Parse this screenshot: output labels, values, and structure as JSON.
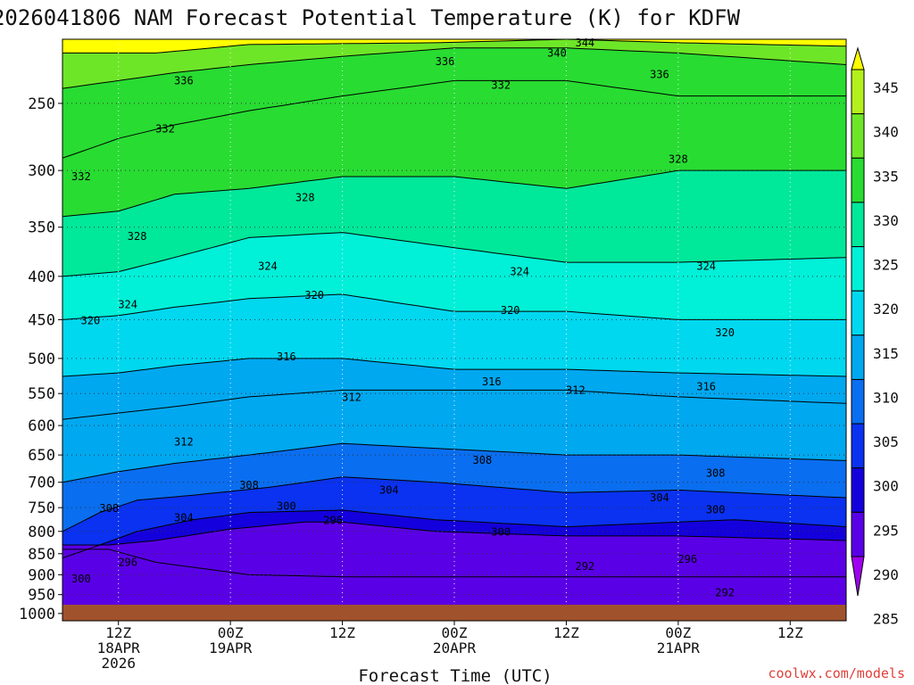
{
  "chart_data": {
    "type": "heatmap",
    "title": "2026041806 NAM Forecast Potential Temperature (K) for KDFW",
    "xlabel": "Forecast Time (UTC)",
    "ylabel": "",
    "credit": "coolwx.com/models",
    "x_range_hours": [
      0,
      84
    ],
    "x_ticks": [
      {
        "hour": 6,
        "line1": "12Z",
        "line2": "18APR",
        "line3": "2026"
      },
      {
        "hour": 18,
        "line1": "00Z",
        "line2": "19APR",
        "line3": ""
      },
      {
        "hour": 30,
        "line1": "12Z",
        "line2": "",
        "line3": ""
      },
      {
        "hour": 42,
        "line1": "00Z",
        "line2": "20APR",
        "line3": ""
      },
      {
        "hour": 54,
        "line1": "12Z",
        "line2": "",
        "line3": ""
      },
      {
        "hour": 66,
        "line1": "00Z",
        "line2": "21APR",
        "line3": ""
      },
      {
        "hour": 78,
        "line1": "12Z",
        "line2": "",
        "line3": ""
      }
    ],
    "y_range_hpa": [
      1020,
      210
    ],
    "y_ticks_hpa": [
      250,
      300,
      350,
      400,
      450,
      500,
      550,
      600,
      650,
      700,
      750,
      800,
      850,
      900,
      950,
      1000
    ],
    "grid": "dotted",
    "contour_interval_K": 4,
    "colorbar": {
      "placement": "right",
      "ticks": [
        345,
        340,
        335,
        330,
        325,
        320,
        315,
        310,
        305,
        300,
        295,
        290,
        285
      ],
      "bands": [
        {
          "min": 345,
          "max": 350,
          "color": "#ffff00"
        },
        {
          "min": 340,
          "max": 345,
          "color": "#b4f01e"
        },
        {
          "min": 335,
          "max": 340,
          "color": "#6ee628"
        },
        {
          "min": 330,
          "max": 335,
          "color": "#28dc32"
        },
        {
          "min": 325,
          "max": 330,
          "color": "#00e89a"
        },
        {
          "min": 320,
          "max": 325,
          "color": "#00f0d8"
        },
        {
          "min": 315,
          "max": 320,
          "color": "#00d8f0"
        },
        {
          "min": 310,
          "max": 315,
          "color": "#00a8f0"
        },
        {
          "min": 305,
          "max": 310,
          "color": "#0a6ef0"
        },
        {
          "min": 300,
          "max": 305,
          "color": "#0a32f0"
        },
        {
          "min": 295,
          "max": 300,
          "color": "#1400dc"
        },
        {
          "min": 290,
          "max": 295,
          "color": "#5a00e6"
        },
        {
          "min": 285,
          "max": 290,
          "color": "#a000f0"
        }
      ]
    },
    "contours": [
      {
        "theta": 292,
        "points": [
          [
            5,
            840
          ],
          [
            10,
            870
          ],
          [
            20,
            900
          ],
          [
            30,
            905
          ],
          [
            42,
            905
          ],
          [
            54,
            905
          ],
          [
            66,
            905
          ],
          [
            84,
            905
          ]
        ]
      },
      {
        "theta": 296,
        "points": [
          [
            5,
            830
          ],
          [
            10,
            820
          ],
          [
            18,
            795
          ],
          [
            26,
            780
          ],
          [
            30,
            780
          ],
          [
            40,
            800
          ],
          [
            54,
            810
          ],
          [
            66,
            810
          ],
          [
            84,
            820
          ]
        ]
      },
      {
        "theta": 300,
        "points": [
          [
            0,
            860
          ],
          [
            4,
            830
          ],
          [
            8,
            800
          ],
          [
            14,
            775
          ],
          [
            20,
            760
          ],
          [
            30,
            755
          ],
          [
            40,
            775
          ],
          [
            54,
            790
          ],
          [
            66,
            780
          ],
          [
            72,
            775
          ],
          [
            84,
            790
          ]
        ]
      },
      {
        "theta": 304,
        "points": [
          [
            0,
            800
          ],
          [
            4,
            760
          ],
          [
            8,
            735
          ],
          [
            14,
            725
          ],
          [
            22,
            710
          ],
          [
            30,
            690
          ],
          [
            40,
            700
          ],
          [
            54,
            720
          ],
          [
            66,
            715
          ],
          [
            84,
            730
          ]
        ]
      },
      {
        "theta": 308,
        "points": [
          [
            0,
            700
          ],
          [
            6,
            680
          ],
          [
            12,
            665
          ],
          [
            20,
            650
          ],
          [
            30,
            630
          ],
          [
            42,
            640
          ],
          [
            54,
            650
          ],
          [
            66,
            650
          ],
          [
            84,
            660
          ]
        ]
      },
      {
        "theta": 312,
        "points": [
          [
            0,
            590
          ],
          [
            6,
            580
          ],
          [
            12,
            570
          ],
          [
            20,
            555
          ],
          [
            30,
            545
          ],
          [
            42,
            545
          ],
          [
            54,
            545
          ],
          [
            66,
            555
          ],
          [
            84,
            565
          ]
        ]
      },
      {
        "theta": 316,
        "points": [
          [
            0,
            525
          ],
          [
            6,
            520
          ],
          [
            12,
            510
          ],
          [
            20,
            500
          ],
          [
            30,
            500
          ],
          [
            42,
            515
          ],
          [
            54,
            515
          ],
          [
            66,
            520
          ],
          [
            84,
            525
          ]
        ]
      },
      {
        "theta": 320,
        "points": [
          [
            0,
            450
          ],
          [
            6,
            445
          ],
          [
            12,
            435
          ],
          [
            20,
            425
          ],
          [
            30,
            420
          ],
          [
            42,
            440
          ],
          [
            54,
            440
          ],
          [
            66,
            450
          ],
          [
            84,
            450
          ]
        ]
      },
      {
        "theta": 324,
        "points": [
          [
            0,
            400
          ],
          [
            6,
            395
          ],
          [
            12,
            380
          ],
          [
            20,
            360
          ],
          [
            30,
            355
          ],
          [
            42,
            370
          ],
          [
            54,
            385
          ],
          [
            66,
            385
          ],
          [
            84,
            380
          ]
        ]
      },
      {
        "theta": 328,
        "points": [
          [
            0,
            340
          ],
          [
            6,
            335
          ],
          [
            12,
            320
          ],
          [
            20,
            315
          ],
          [
            30,
            305
          ],
          [
            42,
            305
          ],
          [
            54,
            315
          ],
          [
            66,
            300
          ],
          [
            84,
            300
          ]
        ]
      },
      {
        "theta": 332,
        "points": [
          [
            0,
            290
          ],
          [
            6,
            275
          ],
          [
            12,
            265
          ],
          [
            20,
            255
          ],
          [
            30,
            245
          ],
          [
            42,
            235
          ],
          [
            54,
            235
          ],
          [
            66,
            245
          ],
          [
            84,
            245
          ]
        ]
      },
      {
        "theta": 336,
        "points": [
          [
            0,
            240
          ],
          [
            6,
            235
          ],
          [
            12,
            230
          ],
          [
            20,
            225
          ],
          [
            30,
            220
          ],
          [
            42,
            215
          ],
          [
            54,
            215
          ],
          [
            66,
            218
          ],
          [
            84,
            225
          ]
        ]
      },
      {
        "theta": 340,
        "points": [
          [
            10,
            218
          ],
          [
            20,
            213
          ],
          [
            40,
            212
          ],
          [
            54,
            210
          ],
          [
            66,
            212
          ],
          [
            84,
            214
          ]
        ]
      }
    ],
    "contour_labels": [
      {
        "text": "344",
        "hour": 56,
        "hpa": 212
      },
      {
        "text": "340",
        "hour": 53,
        "hpa": 218
      },
      {
        "text": "336",
        "hour": 41,
        "hpa": 223
      },
      {
        "text": "336",
        "hour": 13,
        "hpa": 235
      },
      {
        "text": "336",
        "hour": 64,
        "hpa": 231
      },
      {
        "text": "332",
        "hour": 47,
        "hpa": 238
      },
      {
        "text": "332",
        "hour": 11,
        "hpa": 268
      },
      {
        "text": "332",
        "hour": 2,
        "hpa": 305
      },
      {
        "text": "328",
        "hour": 26,
        "hpa": 323
      },
      {
        "text": "328",
        "hour": 66,
        "hpa": 291
      },
      {
        "text": "328",
        "hour": 8,
        "hpa": 359
      },
      {
        "text": "324",
        "hour": 22,
        "hpa": 389
      },
      {
        "text": "324",
        "hour": 49,
        "hpa": 395
      },
      {
        "text": "324",
        "hour": 69,
        "hpa": 389
      },
      {
        "text": "324",
        "hour": 7,
        "hpa": 432
      },
      {
        "text": "320",
        "hour": 27,
        "hpa": 421
      },
      {
        "text": "320",
        "hour": 48,
        "hpa": 439
      },
      {
        "text": "320",
        "hour": 3,
        "hpa": 451
      },
      {
        "text": "320",
        "hour": 71,
        "hpa": 466
      },
      {
        "text": "316",
        "hour": 24,
        "hpa": 498
      },
      {
        "text": "316",
        "hour": 46,
        "hpa": 533
      },
      {
        "text": "316",
        "hour": 69,
        "hpa": 540
      },
      {
        "text": "312",
        "hour": 31,
        "hpa": 556
      },
      {
        "text": "312",
        "hour": 55,
        "hpa": 545
      },
      {
        "text": "312",
        "hour": 13,
        "hpa": 627
      },
      {
        "text": "308",
        "hour": 45,
        "hpa": 659
      },
      {
        "text": "308",
        "hour": 70,
        "hpa": 683
      },
      {
        "text": "308",
        "hour": 20,
        "hpa": 706
      },
      {
        "text": "308",
        "hour": 5,
        "hpa": 752
      },
      {
        "text": "304",
        "hour": 35,
        "hpa": 715
      },
      {
        "text": "304",
        "hour": 64,
        "hpa": 730
      },
      {
        "text": "304",
        "hour": 13,
        "hpa": 771
      },
      {
        "text": "300",
        "hour": 24,
        "hpa": 747
      },
      {
        "text": "300",
        "hour": 70,
        "hpa": 754
      },
      {
        "text": "300",
        "hour": 47,
        "hpa": 801
      },
      {
        "text": "296",
        "hour": 29,
        "hpa": 777
      },
      {
        "text": "296",
        "hour": 7,
        "hpa": 870
      },
      {
        "text": "296",
        "hour": 67,
        "hpa": 863
      },
      {
        "text": "292",
        "hour": 56,
        "hpa": 880
      },
      {
        "text": "292",
        "hour": 71,
        "hpa": 945
      },
      {
        "text": "300",
        "hour": 2,
        "hpa": 910
      }
    ]
  }
}
